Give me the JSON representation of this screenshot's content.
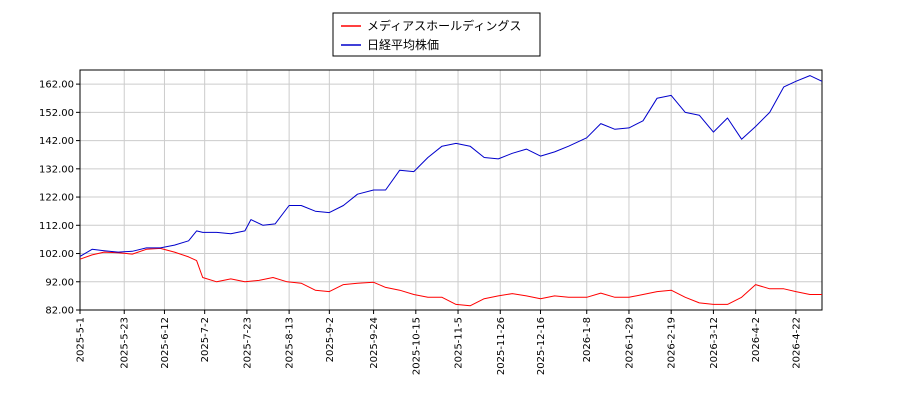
{
  "chart_data": {
    "type": "line",
    "grid": true,
    "legend_position": "top-center",
    "ylim": [
      82,
      167
    ],
    "yticks": [
      "82.00",
      "92.00",
      "102.00",
      "112.00",
      "122.00",
      "132.00",
      "142.00",
      "152.00",
      "162.00"
    ],
    "ytick_values": [
      82,
      92,
      102,
      112,
      122,
      132,
      142,
      152,
      162
    ],
    "xticks": [
      "2025-5-1",
      "2025-5-23",
      "2025-6-12",
      "2025-7-2",
      "2025-7-23",
      "2025-8-13",
      "2025-9-2",
      "2025-9-24",
      "2025-10-15",
      "2025-11-5",
      "2025-11-26",
      "2025-12-16",
      "2026-1-8",
      "2026-1-29",
      "2026-2-19",
      "2026-3-12",
      "2026-4-2",
      "2026-4-22"
    ],
    "x_start": "2025-5-1",
    "x_end": "2026-5-5",
    "series": [
      {
        "name": "メディアスホールディングス",
        "color": "#ff0000",
        "points": [
          [
            "2025-5-1",
            100
          ],
          [
            "2025-5-7",
            101.5
          ],
          [
            "2025-5-13",
            102.5
          ],
          [
            "2025-5-20",
            102.3
          ],
          [
            "2025-5-27",
            101.8
          ],
          [
            "2025-6-3",
            103.5
          ],
          [
            "2025-6-10",
            103.8
          ],
          [
            "2025-6-17",
            102.5
          ],
          [
            "2025-6-24",
            100.8
          ],
          [
            "2025-6-28",
            99.5
          ],
          [
            "2025-7-1",
            93.5
          ],
          [
            "2025-7-8",
            92
          ],
          [
            "2025-7-15",
            93
          ],
          [
            "2025-7-22",
            92
          ],
          [
            "2025-7-29",
            92.5
          ],
          [
            "2025-8-5",
            93.5
          ],
          [
            "2025-8-12",
            92
          ],
          [
            "2025-8-19",
            91.5
          ],
          [
            "2025-8-26",
            89
          ],
          [
            "2025-9-2",
            88.5
          ],
          [
            "2025-9-9",
            91
          ],
          [
            "2025-9-16",
            91.5
          ],
          [
            "2025-9-24",
            91.8
          ],
          [
            "2025-9-30",
            90
          ],
          [
            "2025-10-7",
            89
          ],
          [
            "2025-10-14",
            87.5
          ],
          [
            "2025-10-21",
            86.5
          ],
          [
            "2025-10-28",
            86.5
          ],
          [
            "2025-11-4",
            84
          ],
          [
            "2025-11-11",
            83.5
          ],
          [
            "2025-11-18",
            86
          ],
          [
            "2025-11-25",
            87
          ],
          [
            "2025-12-2",
            87.8
          ],
          [
            "2025-12-9",
            87
          ],
          [
            "2025-12-16",
            86
          ],
          [
            "2025-12-23",
            87
          ],
          [
            "2025-12-30",
            86.5
          ],
          [
            "2026-1-8",
            86.5
          ],
          [
            "2026-1-15",
            88
          ],
          [
            "2026-1-22",
            86.5
          ],
          [
            "2026-1-29",
            86.5
          ],
          [
            "2026-2-5",
            87.5
          ],
          [
            "2026-2-12",
            88.5
          ],
          [
            "2026-2-19",
            89
          ],
          [
            "2026-2-26",
            86.5
          ],
          [
            "2026-3-5",
            84.5
          ],
          [
            "2026-3-12",
            84
          ],
          [
            "2026-3-19",
            84
          ],
          [
            "2026-3-26",
            86.5
          ],
          [
            "2026-4-2",
            91
          ],
          [
            "2026-4-9",
            89.5
          ],
          [
            "2026-4-16",
            89.5
          ],
          [
            "2026-4-22",
            88.5
          ],
          [
            "2026-4-29",
            87.5
          ],
          [
            "2026-5-5",
            87.5
          ]
        ]
      },
      {
        "name": "日経平均株価",
        "color": "#0000cc",
        "points": [
          [
            "2025-5-1",
            101
          ],
          [
            "2025-5-7",
            103.5
          ],
          [
            "2025-5-13",
            103
          ],
          [
            "2025-5-20",
            102.5
          ],
          [
            "2025-5-27",
            102.8
          ],
          [
            "2025-6-3",
            104
          ],
          [
            "2025-6-10",
            104
          ],
          [
            "2025-6-17",
            105
          ],
          [
            "2025-6-24",
            106.5
          ],
          [
            "2025-6-28",
            110
          ],
          [
            "2025-7-1",
            109.5
          ],
          [
            "2025-7-8",
            109.5
          ],
          [
            "2025-7-15",
            109
          ],
          [
            "2025-7-22",
            110
          ],
          [
            "2025-7-25",
            114
          ],
          [
            "2025-7-31",
            112
          ],
          [
            "2025-8-6",
            112.5
          ],
          [
            "2025-8-13",
            119
          ],
          [
            "2025-8-19",
            119
          ],
          [
            "2025-8-26",
            117
          ],
          [
            "2025-9-2",
            116.5
          ],
          [
            "2025-9-9",
            119
          ],
          [
            "2025-9-16",
            123
          ],
          [
            "2025-9-24",
            124.5
          ],
          [
            "2025-9-30",
            124.5
          ],
          [
            "2025-10-7",
            131.5
          ],
          [
            "2025-10-14",
            131
          ],
          [
            "2025-10-21",
            136
          ],
          [
            "2025-10-28",
            140
          ],
          [
            "2025-11-4",
            141
          ],
          [
            "2025-11-11",
            140
          ],
          [
            "2025-11-18",
            136
          ],
          [
            "2025-11-25",
            135.5
          ],
          [
            "2025-12-2",
            137.5
          ],
          [
            "2025-12-9",
            139
          ],
          [
            "2025-12-16",
            136.5
          ],
          [
            "2025-12-23",
            138
          ],
          [
            "2025-12-30",
            140
          ],
          [
            "2026-1-8",
            143
          ],
          [
            "2026-1-15",
            148
          ],
          [
            "2026-1-22",
            146
          ],
          [
            "2026-1-29",
            146.5
          ],
          [
            "2026-2-5",
            149
          ],
          [
            "2026-2-12",
            157
          ],
          [
            "2026-2-19",
            158
          ],
          [
            "2026-2-26",
            152
          ],
          [
            "2026-3-5",
            151
          ],
          [
            "2026-3-12",
            145
          ],
          [
            "2026-3-19",
            150
          ],
          [
            "2026-3-26",
            142.5
          ],
          [
            "2026-4-2",
            147
          ],
          [
            "2026-4-9",
            152
          ],
          [
            "2026-4-16",
            161
          ],
          [
            "2026-4-22",
            163
          ],
          [
            "2026-4-29",
            165
          ],
          [
            "2026-5-5",
            163
          ]
        ]
      }
    ]
  }
}
